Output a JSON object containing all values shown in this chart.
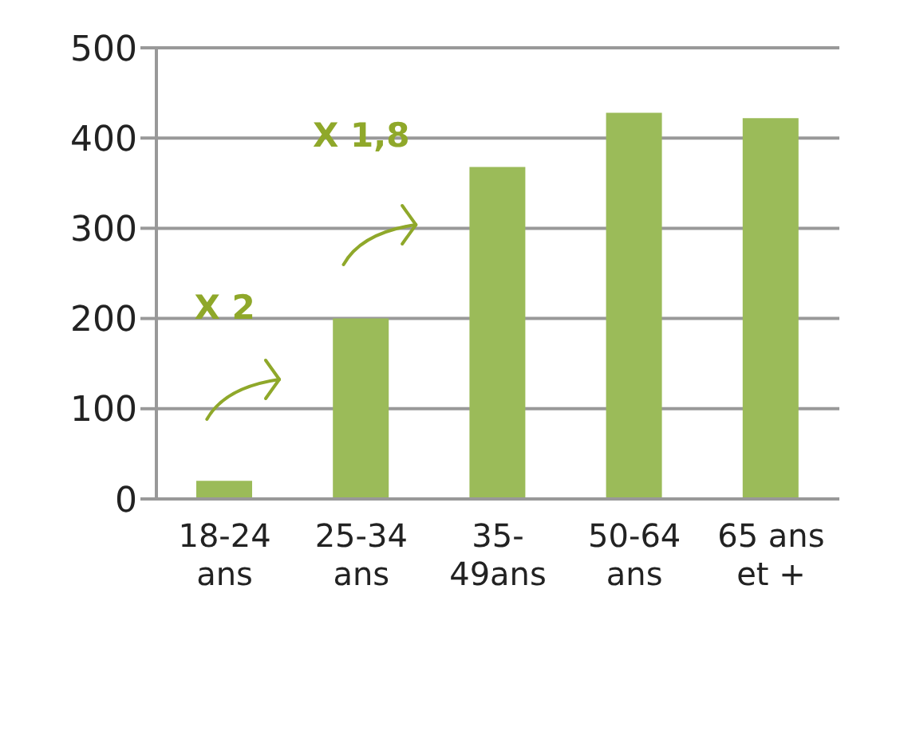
{
  "chart_data": {
    "type": "bar",
    "categories": [
      "18-24\nans",
      "25-34\nans",
      "35-\n49ans",
      "50-64\nans",
      "65 ans\net +"
    ],
    "values": [
      20,
      200,
      368,
      428,
      422
    ],
    "color": "#9bbb59",
    "ylim": [
      0,
      500
    ],
    "yticks": [
      0,
      100,
      200,
      300,
      400,
      500
    ],
    "grid": "y",
    "annotations": [
      "X 2",
      "X 1,8"
    ]
  }
}
